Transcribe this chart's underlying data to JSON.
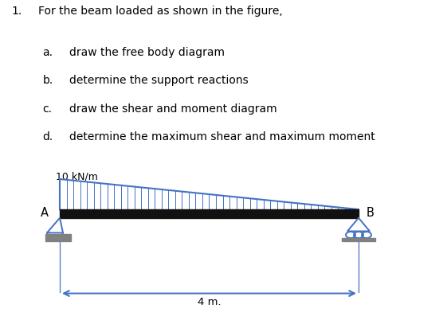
{
  "title_number": "1.",
  "title_text": "For the beam loaded as shown in the figure,",
  "items": [
    {
      "letter": "a.",
      "text": "draw the free body diagram"
    },
    {
      "letter": "b.",
      "text": "determine the support reactions"
    },
    {
      "letter": "c.",
      "text": "draw the shear and moment diagram"
    },
    {
      "letter": "d.",
      "text": "determine the maximum shear and maximum moment"
    }
  ],
  "load_label": "10 kN/m",
  "label_A": "A",
  "label_B": "B",
  "dim_label": "4 m.",
  "beam_color": "#111111",
  "load_color": "#4472C4",
  "support_color": "#808080",
  "text_color": "#000000",
  "bg_color": "#ffffff"
}
